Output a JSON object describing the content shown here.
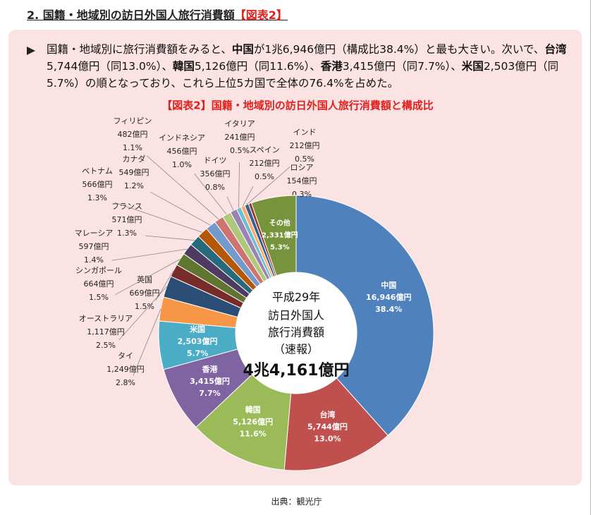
{
  "header": {
    "title": "2. 国籍・地域別の訪日外国人旅行消費額",
    "tag": "【図表2】"
  },
  "summary": {
    "runs": [
      {
        "text": "国籍・地域別に旅行消費額をみると、",
        "bold": false
      },
      {
        "text": "中国",
        "bold": true
      },
      {
        "text": "が1兆6,946億円（構成比38.4%）と最も大きい。次いで、",
        "bold": false
      },
      {
        "text": "台湾",
        "bold": true
      },
      {
        "text": "5,744億円（同13.0%）、",
        "bold": false
      },
      {
        "text": "韓国",
        "bold": true
      },
      {
        "text": "5,126億円（同11.6%）、",
        "bold": false
      },
      {
        "text": "香港",
        "bold": true
      },
      {
        "text": "3,415億円（同7.7%）、",
        "bold": false
      },
      {
        "text": "米国",
        "bold": true
      },
      {
        "text": "2,503億円（同5.7%）の順となっており、これら上位5カ国で全体の76.4%を占めた。",
        "bold": false
      }
    ]
  },
  "chart_data": {
    "type": "pie",
    "donut": true,
    "title": "【図表2】国籍・地域別の訪日外国人旅行消費額と構成比",
    "categories": [
      "中国",
      "台湾",
      "韓国",
      "香港",
      "米国",
      "タイ",
      "オーストラリア",
      "英国",
      "シンガポール",
      "マレーシア",
      "フランス",
      "ベトナム",
      "カナダ",
      "フィリピン",
      "インドネシア",
      "ドイツ",
      "イタリア",
      "スペイン",
      "インド",
      "ロシア",
      "その他"
    ],
    "values": [
      16946,
      5744,
      5126,
      3415,
      2503,
      1249,
      1117,
      669,
      664,
      597,
      571,
      566,
      549,
      482,
      456,
      356,
      241,
      212,
      212,
      154,
      2331
    ],
    "value_labels": [
      "16,946億円",
      "5,744億円",
      "5,126億円",
      "3,415億円",
      "2,503億円",
      "1,249億円",
      "1,117億円",
      "669億円",
      "664億円",
      "597億円",
      "571億円",
      "566億円",
      "549億円",
      "482億円",
      "456億円",
      "356億円",
      "241億円",
      "212億円",
      "212億円",
      "154億円",
      "2,331億円"
    ],
    "share_labels": [
      "38.4%",
      "13.0%",
      "11.6%",
      "7.7%",
      "5.7%",
      "2.8%",
      "2.5%",
      "1.5%",
      "1.5%",
      "1.4%",
      "1.3%",
      "1.3%",
      "1.2%",
      "1.1%",
      "1.0%",
      "0.8%",
      "0.5%",
      "0.5%",
      "0.5%",
      "0.3%",
      "5.3%"
    ],
    "colors": [
      "#4f81bd",
      "#c0504d",
      "#9bbb59",
      "#8064a2",
      "#4bacc6",
      "#f79646",
      "#2c4d75",
      "#772c2a",
      "#5f7530",
      "#4d3b62",
      "#276a7c",
      "#b65708",
      "#729aca",
      "#cd7371",
      "#afc97a",
      "#9983b5",
      "#6fbdd1",
      "#f9ab6b",
      "#3a5f8f",
      "#903634",
      "#77933c"
    ],
    "center_text": [
      "平成29年",
      "訪日外国人",
      "旅行消費額",
      "（速報）",
      "4兆4,161億円"
    ]
  },
  "source": "出典：観光庁"
}
